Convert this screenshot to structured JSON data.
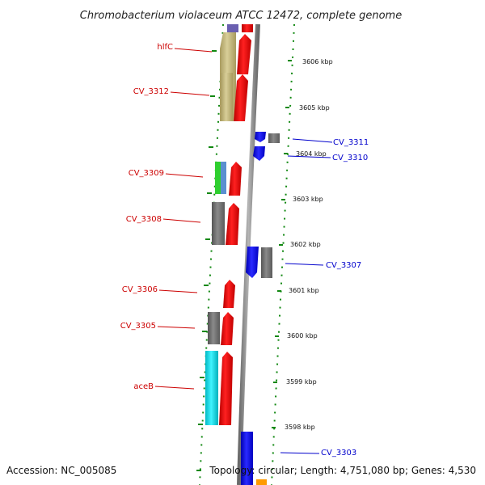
{
  "title": "Chromobacterium violaceum ATCC 12472, complete genome",
  "accession": "Accession: NC_005085",
  "topology": "Topology: circular; Length: 4,751,080 bp; Genes: 4,530",
  "scale_labels": [
    "3606 kbp",
    "3605 kbp",
    "3604 kbp",
    "3603 kbp",
    "3602 kbp",
    "3601 kbp",
    "3600 kbp",
    "3599 kbp",
    "3598 kbp"
  ],
  "gene_labels_left": [
    "hlfC",
    "CV_3312",
    "CV_3309",
    "CV_3308",
    "CV_3306",
    "CV_3305",
    "aceB"
  ],
  "gene_labels_right": [
    "CV_3311",
    "CV_3310",
    "CV_3307",
    "CV_3303"
  ],
  "colors": {
    "forward_cds": "#ff0000",
    "reverse_cds": "#0000ff",
    "gray_feature": "#777777",
    "olive_feature": "#c8bd80",
    "cyan_feature": "#00e5f0",
    "green_feature": "#2fcf2f",
    "orange_feature": "#ff9a00",
    "purple_feature": "#6a5fb0",
    "scale_dots": "#118811",
    "backbone": "#8a8a8a",
    "left_label": "#cc0000",
    "right_label": "#0000cc"
  }
}
